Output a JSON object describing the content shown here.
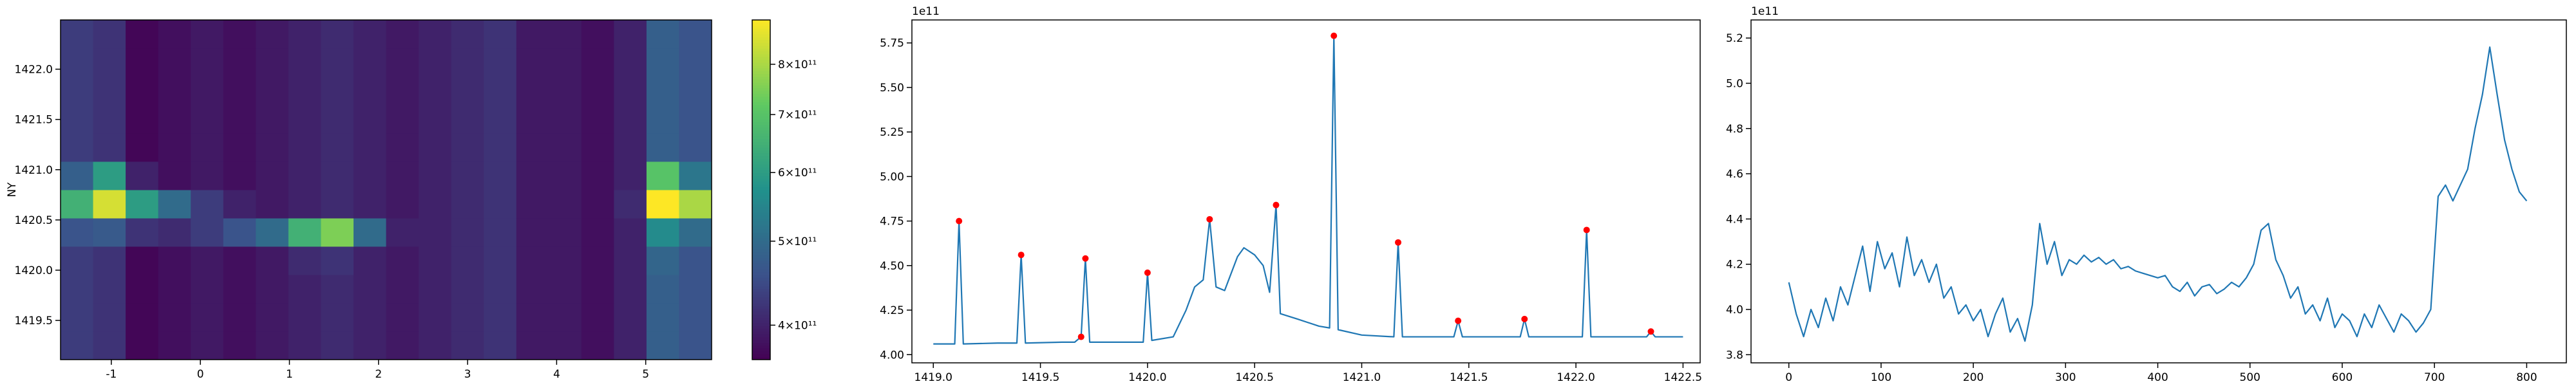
{
  "chart_data": [
    {
      "type": "heatmap",
      "ylabel": "NY",
      "colormap": "viridis",
      "x": [
        -1.387,
        -1.022,
        -0.656,
        -0.291,
        0.075,
        0.44,
        0.806,
        1.171,
        1.537,
        1.902,
        2.268,
        2.633,
        2.999,
        3.364,
        3.73,
        4.095,
        4.461,
        4.826,
        5.192,
        5.557
      ],
      "y": [
        1419.251,
        1419.533,
        1419.814,
        1420.096,
        1420.378,
        1420.659,
        1420.941,
        1421.223,
        1421.504,
        1421.786,
        1422.068,
        1422.349
      ],
      "z": [
        [
          430000000000.0,
          420000000000.0,
          370000000000.0,
          380000000000.0,
          390000000000.0,
          380000000000.0,
          390000000000.0,
          400000000000.0,
          410000000000.0,
          400000000000.0,
          390000000000.0,
          400000000000.0,
          410000000000.0,
          420000000000.0,
          390000000000.0,
          390000000000.0,
          380000000000.0,
          400000000000.0,
          480000000000.0,
          460000000000.0
        ],
        [
          430000000000.0,
          420000000000.0,
          370000000000.0,
          380000000000.0,
          390000000000.0,
          380000000000.0,
          390000000000.0,
          400000000000.0,
          410000000000.0,
          400000000000.0,
          390000000000.0,
          400000000000.0,
          410000000000.0,
          420000000000.0,
          390000000000.0,
          390000000000.0,
          380000000000.0,
          400000000000.0,
          480000000000.0,
          460000000000.0
        ],
        [
          430000000000.0,
          420000000000.0,
          370000000000.0,
          380000000000.0,
          390000000000.0,
          380000000000.0,
          390000000000.0,
          400000000000.0,
          410000000000.0,
          400000000000.0,
          390000000000.0,
          400000000000.0,
          410000000000.0,
          420000000000.0,
          390000000000.0,
          390000000000.0,
          380000000000.0,
          400000000000.0,
          480000000000.0,
          460000000000.0
        ],
        [
          430000000000.0,
          420000000000.0,
          370000000000.0,
          380000000000.0,
          390000000000.0,
          380000000000.0,
          390000000000.0,
          410000000000.0,
          420000000000.0,
          400000000000.0,
          390000000000.0,
          400000000000.0,
          410000000000.0,
          420000000000.0,
          390000000000.0,
          390000000000.0,
          380000000000.0,
          400000000000.0,
          490000000000.0,
          460000000000.0
        ],
        [
          460000000000.0,
          470000000000.0,
          420000000000.0,
          410000000000.0,
          430000000000.0,
          460000000000.0,
          500000000000.0,
          650000000000.0,
          750000000000.0,
          500000000000.0,
          400000000000.0,
          400000000000.0,
          410000000000.0,
          420000000000.0,
          390000000000.0,
          390000000000.0,
          380000000000.0,
          400000000000.0,
          560000000000.0,
          500000000000.0
        ],
        [
          650000000000.0,
          850000000000.0,
          600000000000.0,
          500000000000.0,
          430000000000.0,
          400000000000.0,
          390000000000.0,
          400000000000.0,
          410000000000.0,
          400000000000.0,
          390000000000.0,
          400000000000.0,
          410000000000.0,
          420000000000.0,
          390000000000.0,
          390000000000.0,
          380000000000.0,
          410000000000.0,
          900000000000.0,
          800000000000.0
        ],
        [
          480000000000.0,
          600000000000.0,
          400000000000.0,
          380000000000.0,
          390000000000.0,
          380000000000.0,
          390000000000.0,
          400000000000.0,
          410000000000.0,
          400000000000.0,
          390000000000.0,
          400000000000.0,
          410000000000.0,
          420000000000.0,
          390000000000.0,
          390000000000.0,
          380000000000.0,
          400000000000.0,
          700000000000.0,
          520000000000.0
        ],
        [
          430000000000.0,
          420000000000.0,
          370000000000.0,
          380000000000.0,
          390000000000.0,
          380000000000.0,
          390000000000.0,
          400000000000.0,
          410000000000.0,
          400000000000.0,
          390000000000.0,
          400000000000.0,
          410000000000.0,
          420000000000.0,
          390000000000.0,
          390000000000.0,
          380000000000.0,
          400000000000.0,
          480000000000.0,
          460000000000.0
        ],
        [
          430000000000.0,
          420000000000.0,
          370000000000.0,
          380000000000.0,
          390000000000.0,
          380000000000.0,
          390000000000.0,
          400000000000.0,
          410000000000.0,
          400000000000.0,
          390000000000.0,
          400000000000.0,
          410000000000.0,
          420000000000.0,
          390000000000.0,
          390000000000.0,
          380000000000.0,
          400000000000.0,
          480000000000.0,
          460000000000.0
        ],
        [
          430000000000.0,
          420000000000.0,
          370000000000.0,
          380000000000.0,
          390000000000.0,
          380000000000.0,
          390000000000.0,
          400000000000.0,
          410000000000.0,
          400000000000.0,
          390000000000.0,
          400000000000.0,
          410000000000.0,
          420000000000.0,
          390000000000.0,
          390000000000.0,
          380000000000.0,
          400000000000.0,
          480000000000.0,
          460000000000.0
        ],
        [
          430000000000.0,
          420000000000.0,
          370000000000.0,
          380000000000.0,
          390000000000.0,
          380000000000.0,
          390000000000.0,
          400000000000.0,
          410000000000.0,
          400000000000.0,
          390000000000.0,
          400000000000.0,
          410000000000.0,
          420000000000.0,
          390000000000.0,
          390000000000.0,
          380000000000.0,
          400000000000.0,
          480000000000.0,
          460000000000.0
        ],
        [
          430000000000.0,
          420000000000.0,
          370000000000.0,
          380000000000.0,
          390000000000.0,
          380000000000.0,
          390000000000.0,
          400000000000.0,
          410000000000.0,
          400000000000.0,
          390000000000.0,
          400000000000.0,
          410000000000.0,
          420000000000.0,
          390000000000.0,
          390000000000.0,
          380000000000.0,
          400000000000.0,
          480000000000.0,
          460000000000.0
        ]
      ],
      "xlim": [
        -1.57,
        5.74
      ],
      "ylim": [
        1419.11,
        1422.49
      ],
      "xticks": [
        -1,
        0,
        1,
        2,
        3,
        4,
        5
      ],
      "yticks": [
        1419.5,
        {
          "value": 1420,
          "label": "1420.0"
        },
        1420.5,
        {
          "value": 1421,
          "label": "1421.0"
        },
        1421.5,
        {
          "value": 1422,
          "label": "1422.0"
        }
      ],
      "colorbar": {
        "scale": "log",
        "lim": [
          365000000000.0,
          900000000000.0
        ],
        "ticks": [
          {
            "value": 400000000000.0,
            "label": "4×10¹¹"
          },
          {
            "value": 500000000000.0,
            "label": "5×10¹¹"
          },
          {
            "value": 600000000000.0,
            "label": "6×10¹¹"
          },
          {
            "value": 700000000000.0,
            "label": "7×10¹¹"
          },
          {
            "value": 800000000000.0,
            "label": "8×10¹¹"
          }
        ]
      }
    },
    {
      "type": "line",
      "offset_text": "1e11",
      "series": [
        {
          "color": "#1f77b4",
          "x": [
            1419.0,
            1419.1,
            1419.12,
            1419.14,
            1419.3,
            1419.39,
            1419.41,
            1419.43,
            1419.6,
            1419.66,
            1419.69,
            1419.71,
            1419.73,
            1419.98,
            1420.0,
            1420.02,
            1420.12,
            1420.18,
            1420.22,
            1420.26,
            1420.29,
            1420.32,
            1420.36,
            1420.42,
            1420.45,
            1420.5,
            1420.54,
            1420.57,
            1420.6,
            1420.62,
            1420.7,
            1420.8,
            1420.85,
            1420.87,
            1420.89,
            1421.0,
            1421.15,
            1421.17,
            1421.19,
            1421.43,
            1421.45,
            1421.47,
            1421.74,
            1421.76,
            1421.78,
            1422.03,
            1422.05,
            1422.07,
            1422.33,
            1422.35,
            1422.37,
            1422.5
          ],
          "values": [
            4.06,
            4.06,
            4.75,
            4.06,
            4.065,
            4.065,
            4.56,
            4.065,
            4.07,
            4.07,
            4.1,
            4.54,
            4.07,
            4.07,
            4.46,
            4.08,
            4.1,
            4.25,
            4.38,
            4.42,
            4.76,
            4.38,
            4.36,
            4.55,
            4.6,
            4.56,
            4.5,
            4.35,
            4.84,
            4.23,
            4.2,
            4.16,
            4.15,
            5.79,
            4.14,
            4.11,
            4.1,
            4.63,
            4.1,
            4.1,
            4.19,
            4.1,
            4.1,
            4.2,
            4.1,
            4.1,
            4.7,
            4.1,
            4.1,
            4.13,
            4.1,
            4.1
          ]
        },
        {
          "color": "#ff0000",
          "marker": "o",
          "x": [
            1419.12,
            1419.41,
            1419.69,
            1419.71,
            1420.0,
            1420.29,
            1420.6,
            1420.87,
            1421.17,
            1421.45,
            1421.76,
            1422.05,
            1422.35
          ],
          "values": [
            4.75,
            4.56,
            4.1,
            4.54,
            4.46,
            4.76,
            4.84,
            5.79,
            4.63,
            4.19,
            4.2,
            4.7,
            4.13
          ]
        }
      ],
      "xlim": [
        1418.9,
        1422.58
      ],
      "ylim": [
        3.954,
        5.879
      ],
      "xticks": [
        {
          "value": 1419,
          "label": "1419.0"
        },
        1419.5,
        {
          "value": 1420,
          "label": "1420.0"
        },
        1420.5,
        {
          "value": 1421,
          "label": "1421.0"
        },
        1421.5,
        {
          "value": 1422,
          "label": "1422.0"
        },
        1422.5
      ],
      "yticks": [
        {
          "value": 4,
          "label": "4.00"
        },
        4.25,
        {
          "value": 4.5,
          "label": "4.50"
        },
        4.75,
        {
          "value": 5,
          "label": "5.00"
        },
        5.25,
        {
          "value": 5.5,
          "label": "5.50"
        },
        5.75
      ]
    },
    {
      "type": "line",
      "offset_text": "1e11",
      "series": [
        {
          "color": "#1f77b4",
          "x": [
            0,
            8,
            16,
            24,
            32,
            40,
            48,
            56,
            64,
            72,
            80,
            88,
            96,
            104,
            112,
            120,
            128,
            136,
            144,
            152,
            160,
            168,
            176,
            184,
            192,
            200,
            208,
            216,
            224,
            232,
            240,
            248,
            256,
            264,
            272,
            280,
            288,
            296,
            304,
            312,
            320,
            328,
            336,
            344,
            352,
            360,
            368,
            376,
            384,
            392,
            400,
            408,
            416,
            424,
            432,
            440,
            448,
            456,
            464,
            472,
            480,
            488,
            496,
            504,
            512,
            520,
            528,
            536,
            544,
            552,
            560,
            568,
            576,
            584,
            592,
            600,
            608,
            616,
            624,
            632,
            640,
            648,
            656,
            664,
            672,
            680,
            688,
            696,
            704,
            712,
            720,
            728,
            736,
            744,
            752,
            760,
            768,
            776,
            784,
            792,
            800
          ],
          "values": [
            4.12,
            3.98,
            3.88,
            4.0,
            3.92,
            4.05,
            3.95,
            4.1,
            4.02,
            4.15,
            4.28,
            4.08,
            4.3,
            4.18,
            4.25,
            4.1,
            4.32,
            4.15,
            4.22,
            4.12,
            4.2,
            4.05,
            4.1,
            3.98,
            4.02,
            3.95,
            4.0,
            3.88,
            3.98,
            4.05,
            3.9,
            3.96,
            3.86,
            4.02,
            4.38,
            4.2,
            4.3,
            4.15,
            4.22,
            4.2,
            4.24,
            4.21,
            4.23,
            4.2,
            4.22,
            4.18,
            4.19,
            4.17,
            4.16,
            4.15,
            4.14,
            4.15,
            4.1,
            4.08,
            4.12,
            4.06,
            4.1,
            4.11,
            4.07,
            4.09,
            4.12,
            4.1,
            4.14,
            4.2,
            4.35,
            4.38,
            4.22,
            4.15,
            4.05,
            4.1,
            3.98,
            4.02,
            3.95,
            4.05,
            3.92,
            3.98,
            3.95,
            3.88,
            3.98,
            3.92,
            4.02,
            3.96,
            3.9,
            3.98,
            3.95,
            3.9,
            3.94,
            4.0,
            4.5,
            4.55,
            4.48,
            4.55,
            4.62,
            4.8,
            4.95,
            5.16,
            4.95,
            4.75,
            4.62,
            4.52,
            4.48
          ]
        }
      ],
      "xlim": [
        -41,
        843
      ],
      "ylim": [
        3.764,
        5.28
      ],
      "xticks": [
        0,
        100,
        200,
        300,
        400,
        500,
        600,
        700,
        800
      ],
      "yticks": [
        3.8,
        {
          "value": 4,
          "label": "4.0"
        },
        4.2,
        4.4,
        4.6,
        4.8,
        {
          "value": 5,
          "label": "5.0"
        },
        5.2
      ]
    }
  ]
}
